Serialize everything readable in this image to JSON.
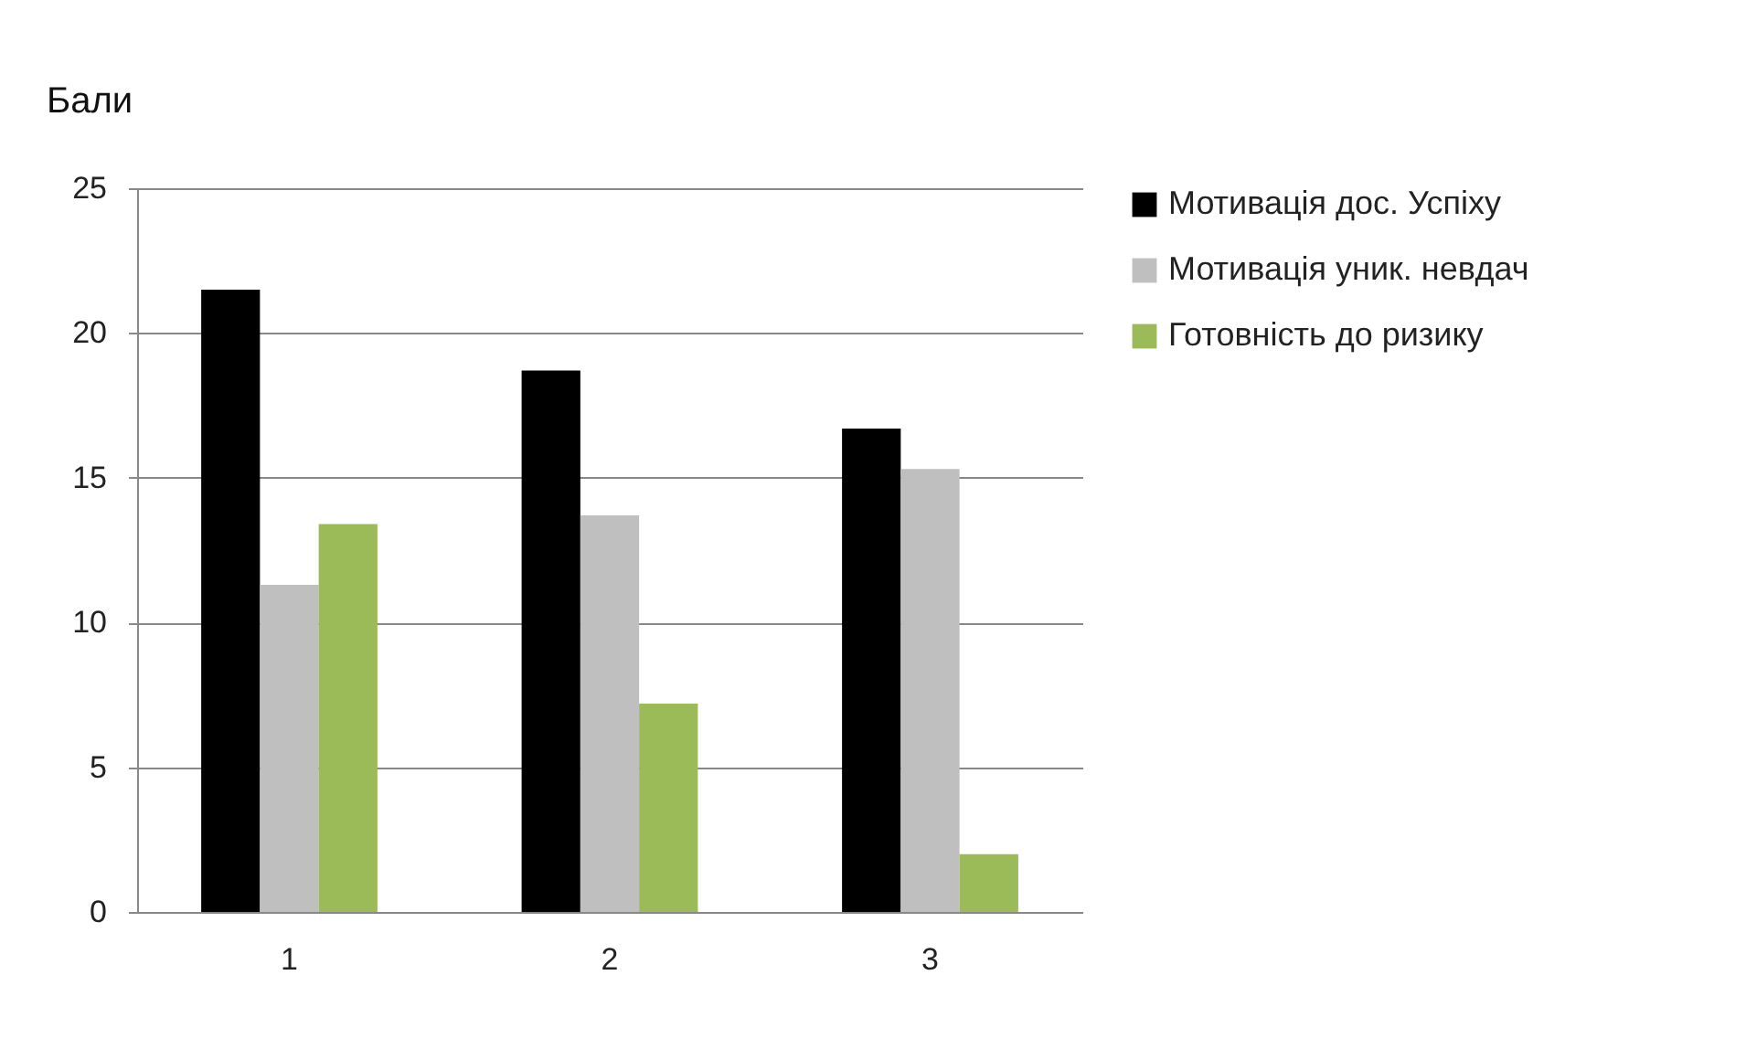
{
  "chart_data": {
    "type": "bar",
    "ylabel": "Бали",
    "categories": [
      "1",
      "2",
      "3"
    ],
    "series": [
      {
        "name": "Мотивація дос. Успіху",
        "color": "#000000",
        "values": [
          21.5,
          18.7,
          16.7
        ]
      },
      {
        "name": "Мотивація уник. невдач",
        "color": "#bfbfbf",
        "values": [
          11.3,
          13.7,
          15.3
        ]
      },
      {
        "name": "Готовність до ризику",
        "color": "#9bbb59",
        "values": [
          13.4,
          7.2,
          2.0
        ]
      }
    ],
    "ylim": [
      0,
      25
    ],
    "yticks": [
      0,
      5,
      10,
      15,
      20,
      25
    ],
    "grid": "y",
    "legend": "right"
  }
}
